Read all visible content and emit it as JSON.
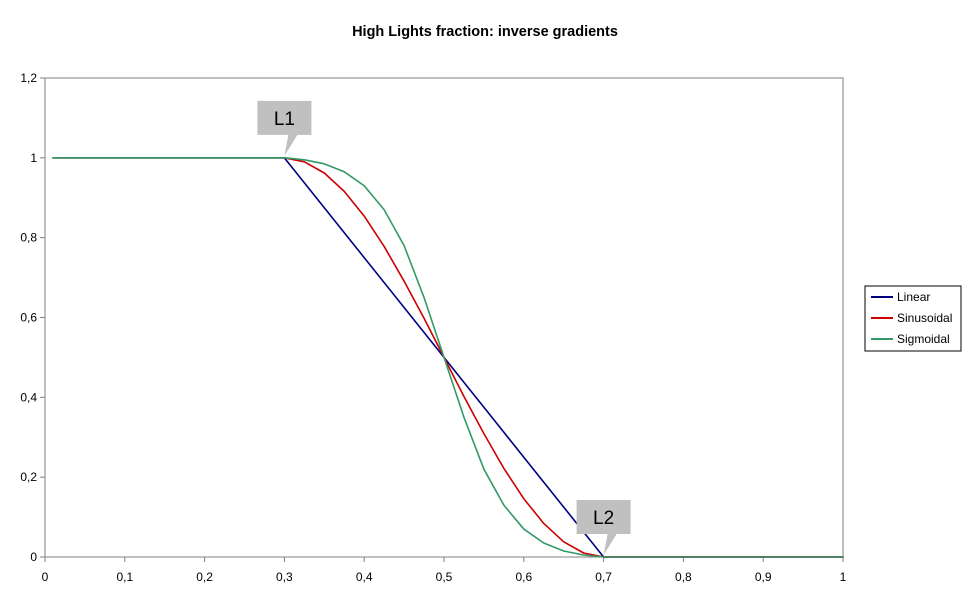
{
  "chart_data": {
    "type": "line",
    "title": "High Lights fraction: inverse gradients",
    "xlabel": "",
    "ylabel": "",
    "xlim": [
      0,
      1
    ],
    "ylim": [
      0,
      1.2
    ],
    "x_ticks": [
      "0",
      "0,1",
      "0,2",
      "0,3",
      "0,4",
      "0,5",
      "0,6",
      "0,7",
      "0,8",
      "0,9",
      "1"
    ],
    "y_ticks": [
      "0",
      "0,2",
      "0,4",
      "0,6",
      "0,8",
      "1",
      "1,2"
    ],
    "grid": false,
    "legend_position": "right",
    "series": [
      {
        "name": "Linear",
        "color": "#000080",
        "x": [
          0.01,
          0.3,
          0.35,
          0.4,
          0.45,
          0.5,
          0.55,
          0.6,
          0.65,
          0.7,
          1.0
        ],
        "y": [
          1,
          1,
          0.875,
          0.75,
          0.625,
          0.5,
          0.375,
          0.25,
          0.125,
          0,
          0
        ]
      },
      {
        "name": "Sinusoidal",
        "color": "#cc0000",
        "x": [
          0.01,
          0.3,
          0.325,
          0.35,
          0.375,
          0.4,
          0.425,
          0.45,
          0.475,
          0.5,
          0.525,
          0.55,
          0.575,
          0.6,
          0.625,
          0.65,
          0.675,
          0.7,
          1.0
        ],
        "y": [
          1,
          1,
          0.99,
          0.962,
          0.916,
          0.854,
          0.778,
          0.691,
          0.598,
          0.5,
          0.402,
          0.309,
          0.222,
          0.146,
          0.084,
          0.038,
          0.01,
          0,
          0
        ]
      },
      {
        "name": "Sigmoidal",
        "color": "#339966",
        "x": [
          0.01,
          0.3,
          0.325,
          0.35,
          0.375,
          0.4,
          0.425,
          0.45,
          0.475,
          0.5,
          0.525,
          0.55,
          0.575,
          0.6,
          0.625,
          0.65,
          0.675,
          0.7,
          1.0
        ],
        "y": [
          1,
          1,
          0.995,
          0.985,
          0.965,
          0.93,
          0.87,
          0.78,
          0.65,
          0.5,
          0.35,
          0.22,
          0.13,
          0.07,
          0.035,
          0.015,
          0.005,
          0,
          0
        ]
      }
    ],
    "annotations": [
      {
        "text": "L1",
        "x": 0.3,
        "y": 1
      },
      {
        "text": "L2",
        "x": 0.7,
        "y": 0
      }
    ]
  }
}
